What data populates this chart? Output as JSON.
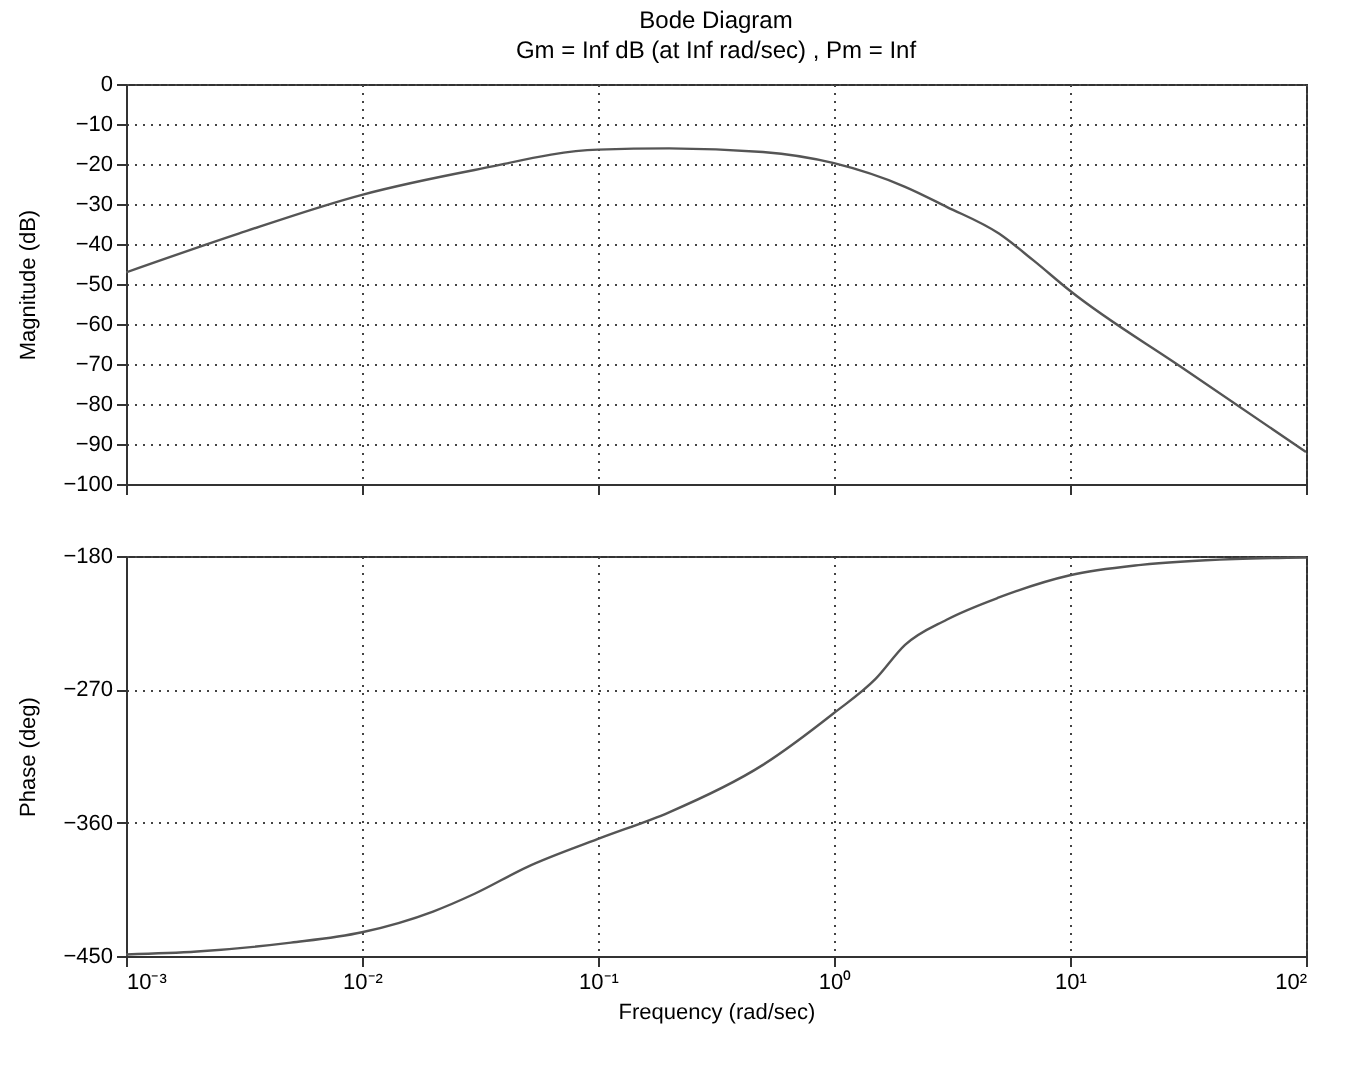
{
  "chart_data": [
    {
      "type": "line",
      "title": "Bode Diagram",
      "subtitle": "Gm = Inf dB (at Inf rad/sec) ,  Pm = Inf",
      "ylabel": "Magnitude (dB)",
      "log": "x",
      "grid": true,
      "tick_labels": "y",
      "x": [
        0.001,
        0.003,
        0.01,
        0.03,
        0.1,
        0.2,
        0.5,
        1,
        2,
        3,
        5,
        7,
        10,
        30,
        100
      ],
      "series": [
        {
          "color": "#555555",
          "values": [
            -47.1,
            -37.4,
            -27.7,
            -21.5,
            -16.4,
            -16.1,
            -17,
            -19.8,
            -25.7,
            -30.7,
            -37.4,
            -44.1,
            -51.7,
            -71,
            -92
          ]
        }
      ],
      "xlim": [
        0.001,
        100
      ],
      "xticks": [
        0.001,
        0.01,
        0.1,
        1,
        10,
        100
      ],
      "ylim": [
        -100,
        0
      ],
      "yticks": [
        -100,
        -90,
        -80,
        -70,
        -60,
        -50,
        -40,
        -30,
        -20,
        -10,
        0
      ]
    },
    {
      "type": "line",
      "xlabel": "Frequency  (rad/sec)",
      "ylabel": "Phase (deg)",
      "log": "x",
      "grid": true,
      "x": [
        0.001,
        0.002,
        0.005,
        0.01,
        0.02,
        0.03,
        0.05,
        0.1,
        0.2,
        0.5,
        1,
        1.5,
        2,
        3,
        5,
        10,
        20,
        50,
        100
      ],
      "series": [
        {
          "color": "#555555",
          "values": [
            -449,
            -447,
            -441,
            -434,
            -420,
            -408,
            -390,
            -371,
            -353,
            -321,
            -286,
            -263,
            -240,
            -223,
            -208,
            -193,
            -186,
            -182,
            -181
          ]
        }
      ],
      "xlim": [
        0.001,
        100
      ],
      "xticks": [
        {
          "value": 0.001,
          "label": "10⁻³"
        },
        {
          "value": 0.01,
          "label": "10⁻²"
        },
        {
          "value": 0.1,
          "label": "10⁻¹"
        },
        {
          "value": 1,
          "label": "10⁰"
        },
        {
          "value": 10,
          "label": "10¹"
        },
        {
          "value": 100,
          "label": "10²"
        }
      ],
      "ylim": [
        -450,
        -180
      ],
      "yticks": [
        -450,
        -360,
        -270,
        -180
      ]
    }
  ]
}
